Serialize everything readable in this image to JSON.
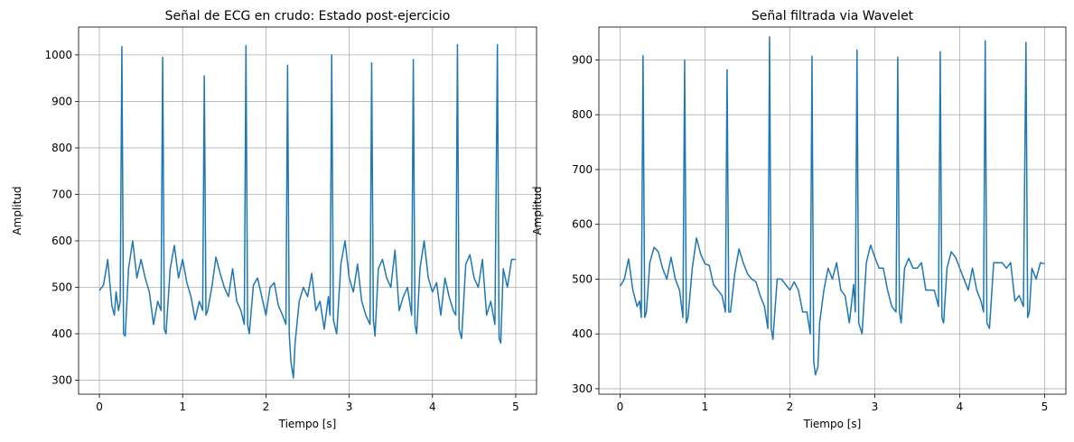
{
  "colors": {
    "series": "#1f77b4",
    "grid": "#b0b0b0"
  },
  "chart_data": [
    {
      "type": "line",
      "title": "Señal  de ECG en crudo: Estado post-ejercicio",
      "xlabel": "Tiempo [s]",
      "ylabel": "Amplitud",
      "xlim": [
        -0.25,
        5.25
      ],
      "ylim": [
        270,
        1060
      ],
      "xticks": [
        0,
        1,
        2,
        3,
        4,
        5
      ],
      "xtick_labels": [
        "0",
        "1",
        "2",
        "3",
        "4",
        "5"
      ],
      "yticks": [
        300,
        400,
        500,
        600,
        700,
        800,
        900,
        1000
      ],
      "ytick_labels": [
        "300",
        "400",
        "500",
        "600",
        "700",
        "800",
        "900",
        "1000"
      ],
      "grid": true,
      "series": [
        {
          "x": [
            0,
            0.05,
            0.1,
            0.12,
            0.15,
            0.18,
            0.2,
            0.23,
            0.25,
            0.27,
            0.29,
            0.31,
            0.35,
            0.4,
            0.45,
            0.5,
            0.55,
            0.6,
            0.65,
            0.7,
            0.74,
            0.76,
            0.78,
            0.8,
            0.85,
            0.9,
            0.95,
            1.0,
            1.05,
            1.1,
            1.15,
            1.2,
            1.24,
            1.26,
            1.28,
            1.3,
            1.35,
            1.4,
            1.45,
            1.5,
            1.55,
            1.6,
            1.65,
            1.7,
            1.74,
            1.76,
            1.78,
            1.8,
            1.85,
            1.9,
            1.95,
            2.0,
            2.05,
            2.1,
            2.15,
            2.2,
            2.24,
            2.26,
            2.28,
            2.3,
            2.33,
            2.35,
            2.4,
            2.45,
            2.5,
            2.55,
            2.6,
            2.65,
            2.7,
            2.75,
            2.77,
            2.79,
            2.81,
            2.85,
            2.9,
            2.95,
            3.0,
            3.05,
            3.1,
            3.15,
            3.2,
            3.25,
            3.27,
            3.29,
            3.31,
            3.35,
            3.4,
            3.45,
            3.5,
            3.55,
            3.6,
            3.65,
            3.7,
            3.75,
            3.77,
            3.79,
            3.81,
            3.85,
            3.9,
            3.95,
            4.0,
            4.05,
            4.1,
            4.15,
            4.2,
            4.25,
            4.28,
            4.3,
            4.32,
            4.35,
            4.4,
            4.45,
            4.5,
            4.55,
            4.6,
            4.65,
            4.7,
            4.75,
            4.78,
            4.8,
            4.82,
            4.85,
            4.9,
            4.95,
            5.0
          ],
          "y": [
            493,
            505,
            560,
            520,
            460,
            440,
            490,
            450,
            470,
            1018,
            400,
            395,
            540,
            600,
            520,
            560,
            520,
            490,
            420,
            470,
            450,
            995,
            410,
            400,
            540,
            590,
            520,
            560,
            510,
            480,
            430,
            470,
            450,
            955,
            440,
            450,
            500,
            565,
            530,
            500,
            480,
            540,
            470,
            450,
            420,
            1020,
            420,
            400,
            505,
            520,
            480,
            440,
            500,
            510,
            460,
            440,
            420,
            978,
            400,
            340,
            305,
            380,
            470,
            500,
            480,
            530,
            450,
            470,
            410,
            480,
            440,
            1000,
            430,
            400,
            550,
            600,
            520,
            490,
            550,
            470,
            440,
            420,
            983,
            430,
            395,
            540,
            560,
            520,
            500,
            580,
            450,
            480,
            500,
            440,
            990,
            420,
            400,
            540,
            600,
            520,
            490,
            510,
            440,
            520,
            480,
            450,
            440,
            1022,
            410,
            390,
            550,
            570,
            520,
            500,
            560,
            440,
            470,
            420,
            1022,
            390,
            380,
            540,
            500,
            560,
            560
          ]
        }
      ]
    },
    {
      "type": "line",
      "title": "Señal filtrada via Wavelet",
      "xlabel": "Tiempo [s]",
      "ylabel": "Amplitud",
      "xlim": [
        -0.25,
        5.25
      ],
      "ylim": [
        290,
        960
      ],
      "xticks": [
        0,
        1,
        2,
        3,
        4,
        5
      ],
      "xtick_labels": [
        "0",
        "1",
        "2",
        "3",
        "4",
        "5"
      ],
      "yticks": [
        300,
        400,
        500,
        600,
        700,
        800,
        900
      ],
      "ytick_labels": [
        "300",
        "400",
        "500",
        "600",
        "700",
        "800",
        "900"
      ],
      "grid": true,
      "series": [
        {
          "x": [
            0,
            0.05,
            0.1,
            0.15,
            0.2,
            0.23,
            0.25,
            0.27,
            0.29,
            0.31,
            0.35,
            0.4,
            0.45,
            0.5,
            0.55,
            0.6,
            0.65,
            0.7,
            0.74,
            0.76,
            0.78,
            0.8,
            0.85,
            0.9,
            0.95,
            1.0,
            1.05,
            1.1,
            1.15,
            1.2,
            1.24,
            1.26,
            1.28,
            1.3,
            1.35,
            1.4,
            1.45,
            1.5,
            1.55,
            1.6,
            1.65,
            1.7,
            1.74,
            1.76,
            1.78,
            1.8,
            1.85,
            1.9,
            1.95,
            2.0,
            2.05,
            2.1,
            2.15,
            2.2,
            2.24,
            2.26,
            2.28,
            2.3,
            2.33,
            2.35,
            2.4,
            2.45,
            2.5,
            2.55,
            2.6,
            2.65,
            2.7,
            2.75,
            2.77,
            2.79,
            2.81,
            2.85,
            2.9,
            2.95,
            3.0,
            3.05,
            3.1,
            3.15,
            3.2,
            3.25,
            3.27,
            3.29,
            3.31,
            3.35,
            3.4,
            3.45,
            3.5,
            3.55,
            3.6,
            3.65,
            3.7,
            3.75,
            3.77,
            3.79,
            3.81,
            3.85,
            3.9,
            3.95,
            4.0,
            4.05,
            4.1,
            4.15,
            4.2,
            4.25,
            4.28,
            4.3,
            4.32,
            4.35,
            4.4,
            4.45,
            4.5,
            4.55,
            4.6,
            4.65,
            4.7,
            4.75,
            4.78,
            4.8,
            4.82,
            4.85,
            4.9,
            4.95,
            5.0
          ],
          "y": [
            487,
            500,
            537,
            480,
            450,
            460,
            430,
            908,
            430,
            440,
            530,
            558,
            550,
            520,
            500,
            540,
            500,
            480,
            430,
            900,
            420,
            430,
            520,
            575,
            545,
            528,
            525,
            490,
            480,
            470,
            440,
            882,
            440,
            440,
            510,
            555,
            530,
            510,
            500,
            495,
            470,
            450,
            410,
            942,
            410,
            390,
            500,
            500,
            490,
            480,
            495,
            480,
            440,
            440,
            400,
            907,
            350,
            325,
            340,
            420,
            480,
            520,
            500,
            530,
            480,
            470,
            420,
            490,
            440,
            918,
            420,
            400,
            530,
            562,
            540,
            520,
            520,
            480,
            450,
            440,
            905,
            440,
            420,
            520,
            538,
            520,
            520,
            530,
            480,
            480,
            480,
            450,
            915,
            430,
            420,
            520,
            550,
            540,
            520,
            500,
            480,
            520,
            480,
            460,
            440,
            935,
            420,
            410,
            530,
            530,
            530,
            520,
            530,
            460,
            470,
            450,
            932,
            430,
            440,
            520,
            500,
            530,
            528
          ]
        }
      ]
    }
  ]
}
